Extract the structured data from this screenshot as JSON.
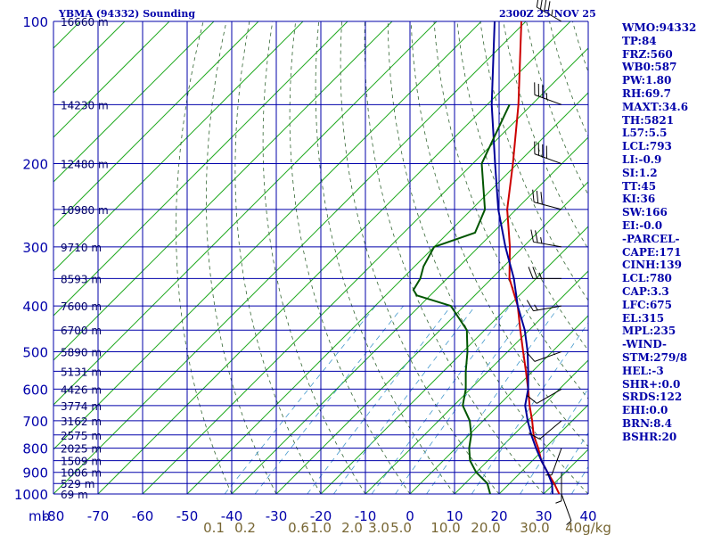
{
  "header": {
    "station": "YBMA (94332) Sounding",
    "time": "2300Z 25 NOV 25"
  },
  "chart_data": {
    "type": "skew-t",
    "pressure_levels": [
      100,
      200,
      300,
      400,
      500,
      600,
      700,
      800,
      900,
      1000
    ],
    "pressure_gridlines": [
      100,
      150,
      200,
      250,
      300,
      350,
      400,
      450,
      500,
      550,
      600,
      650,
      700,
      750,
      800,
      850,
      900,
      950,
      1000
    ],
    "height_labels": [
      {
        "p": 100,
        "label": "16660 m"
      },
      {
        "p": 150,
        "label": "14230 m"
      },
      {
        "p": 200,
        "label": "12480 m"
      },
      {
        "p": 250,
        "label": "10980 m"
      },
      {
        "p": 300,
        "label": "9710 m"
      },
      {
        "p": 350,
        "label": "8593 m"
      },
      {
        "p": 400,
        "label": "7600 m"
      },
      {
        "p": 450,
        "label": "6700 m"
      },
      {
        "p": 500,
        "label": "5890 m"
      },
      {
        "p": 550,
        "label": "5131 m"
      },
      {
        "p": 600,
        "label": "4426 m"
      },
      {
        "p": 650,
        "label": "3774 m"
      },
      {
        "p": 700,
        "label": "3162 m"
      },
      {
        "p": 750,
        "label": "2575 m"
      },
      {
        "p": 800,
        "label": "2025 m"
      },
      {
        "p": 850,
        "label": "1509 m"
      },
      {
        "p": 900,
        "label": "1006 m"
      },
      {
        "p": 950,
        "label": "529 m"
      },
      {
        "p": 1000,
        "label": "69 m"
      }
    ],
    "x_unit_label": "mb",
    "temperature_ticks": [
      -80,
      -70,
      -60,
      -50,
      -40,
      -30,
      -20,
      -10,
      0,
      10,
      20,
      30,
      40
    ],
    "temperature_tick_labels": [
      "-80",
      "-70",
      "-60",
      "-50",
      "-40",
      "-30",
      "-20",
      "-10",
      "0",
      "10",
      "20",
      "30",
      "40"
    ],
    "mixing_ratio_labels": [
      {
        "t": -44,
        "label": "0.1"
      },
      {
        "t": -37,
        "label": "0.2"
      },
      {
        "t": -25,
        "label": "0.6"
      },
      {
        "t": -20,
        "label": "1.0"
      },
      {
        "t": -13,
        "label": "2.0"
      },
      {
        "t": -7,
        "label": "3.0"
      },
      {
        "t": -2,
        "label": "5.0"
      },
      {
        "t": 8,
        "label": "10.0"
      },
      {
        "t": 17,
        "label": "20.0"
      },
      {
        "t": 28,
        "label": "30.0"
      },
      {
        "t": 40,
        "label": "40g/kg"
      }
    ],
    "series": [
      {
        "color": "#cc0000",
        "points": [
          [
            100,
            -81
          ],
          [
            150,
            -63
          ],
          [
            200,
            -51
          ],
          [
            250,
            -42
          ],
          [
            300,
            -33
          ],
          [
            350,
            -26
          ],
          [
            400,
            -18
          ],
          [
            450,
            -12
          ],
          [
            500,
            -6.5
          ],
          [
            550,
            -1.5
          ],
          [
            600,
            3
          ],
          [
            650,
            7
          ],
          [
            700,
            11
          ],
          [
            750,
            14.5
          ],
          [
            800,
            18.5
          ],
          [
            850,
            22
          ],
          [
            900,
            26
          ],
          [
            950,
            30
          ],
          [
            1000,
            33.5
          ]
        ]
      },
      {
        "color": "#000099",
        "points": [
          [
            100,
            -87
          ],
          [
            150,
            -69
          ],
          [
            200,
            -55
          ],
          [
            250,
            -44
          ],
          [
            300,
            -34
          ],
          [
            350,
            -25
          ],
          [
            400,
            -18
          ],
          [
            450,
            -11
          ],
          [
            500,
            -5.5
          ],
          [
            550,
            -1
          ],
          [
            600,
            3
          ],
          [
            650,
            6
          ],
          [
            700,
            10
          ],
          [
            750,
            14
          ],
          [
            800,
            18
          ],
          [
            850,
            22
          ],
          [
            900,
            26
          ],
          [
            950,
            29.5
          ],
          [
            1000,
            32
          ]
        ]
      },
      {
        "color": "#005500",
        "points": [
          [
            150,
            -65
          ],
          [
            200,
            -58
          ],
          [
            250,
            -47
          ],
          [
            280,
            -44
          ],
          [
            300,
            -50
          ],
          [
            330,
            -48
          ],
          [
            350,
            -46
          ],
          [
            370,
            -45
          ],
          [
            380,
            -43
          ],
          [
            400,
            -33
          ],
          [
            450,
            -24
          ],
          [
            500,
            -19
          ],
          [
            550,
            -15
          ],
          [
            600,
            -11
          ],
          [
            650,
            -8
          ],
          [
            700,
            -3
          ],
          [
            750,
            0.5
          ],
          [
            800,
            3
          ],
          [
            850,
            6
          ],
          [
            900,
            10
          ],
          [
            950,
            15
          ],
          [
            1000,
            18
          ]
        ]
      }
    ],
    "wind_barbs": [
      {
        "p": 100,
        "dir": 300,
        "spd": 45
      },
      {
        "p": 150,
        "dir": 290,
        "spd": 35
      },
      {
        "p": 200,
        "dir": 290,
        "spd": 40
      },
      {
        "p": 250,
        "dir": 285,
        "spd": 30
      },
      {
        "p": 300,
        "dir": 280,
        "spd": 25
      },
      {
        "p": 350,
        "dir": 270,
        "spd": 25
      },
      {
        "p": 400,
        "dir": 260,
        "spd": 15
      },
      {
        "p": 500,
        "dir": 250,
        "spd": 10
      },
      {
        "p": 600,
        "dir": 240,
        "spd": 10
      },
      {
        "p": 700,
        "dir": 230,
        "spd": 10
      },
      {
        "p": 800,
        "dir": 200,
        "spd": 5
      },
      {
        "p": 900,
        "dir": 180,
        "spd": 5
      },
      {
        "p": 1000,
        "dir": 160,
        "spd": 5
      }
    ]
  },
  "indices": [
    "WMO:94332",
    "TP:84",
    "FRZ:560",
    "WB0:587",
    "PW:1.80",
    "RH:69.7",
    "MAXT:34.6",
    "TH:5821",
    "L57:5.5",
    "LCL:793",
    "LI:-0.9",
    "SI:1.2",
    "TT:45",
    "KI:36",
    "SW:166",
    "EI:-0.0",
    "-PARCEL-",
    "CAPE:171",
    "CINH:139",
    "LCL:780",
    "CAP:3.3",
    "LFC:675",
    "EL:315",
    "MPL:235",
    "-WIND-",
    "STM:279/8",
    "HEL:-3",
    "SHR+:0.0",
    "SRDS:122",
    "EHI:0.0",
    "BRN:8.4",
    "BSHR:20"
  ]
}
